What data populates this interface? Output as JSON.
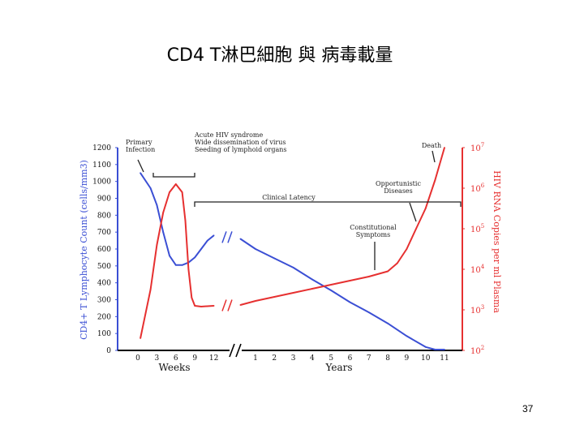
{
  "slide": {
    "title": "CD4 T淋巴細胞 與 病毒載量",
    "page_number": "37"
  },
  "colors": {
    "cd4": "#3b4fd4",
    "rna": "#e63030",
    "annotation": "#222222"
  },
  "chart_data": {
    "type": "line",
    "title": "",
    "ylabel_left": "CD4+ T Lymphocyte Count (cells/mm3)",
    "ylabel_right": "HIV RNA Copies per ml Plasma",
    "xlabel_weeks": "Weeks",
    "xlabel_years": "Years",
    "ylim_left": [
      0,
      1200
    ],
    "ylim_right_log10": [
      2,
      7
    ],
    "left_ticks": [
      "0",
      "100",
      "200",
      "300",
      "400",
      "500",
      "600",
      "700",
      "800",
      "900",
      "1000",
      "1100",
      "1200"
    ],
    "right_ticks": [
      {
        "base": "10",
        "exp": "2",
        "log": 2
      },
      {
        "base": "10",
        "exp": "3",
        "log": 3
      },
      {
        "base": "10",
        "exp": "4",
        "log": 4
      },
      {
        "base": "10",
        "exp": "5",
        "log": 5
      },
      {
        "base": "10",
        "exp": "6",
        "log": 6
      },
      {
        "base": "10",
        "exp": "7",
        "log": 7
      }
    ],
    "x_ticks_weeks": [
      "0",
      "3",
      "6",
      "9",
      "12"
    ],
    "x_ticks_years": [
      "1",
      "2",
      "3",
      "4",
      "5",
      "6",
      "7",
      "8",
      "9",
      "10",
      "11"
    ],
    "series": [
      {
        "key": "cd4",
        "x": [
          "w0.4",
          "w2",
          "w3",
          "w4",
          "w5",
          "w6",
          "w7",
          "w8",
          "w9",
          "w10",
          "w11",
          "w12",
          "y0.2",
          "y1",
          "y2",
          "y3",
          "y4",
          "y5",
          "y6",
          "y7",
          "y8",
          "y9",
          "y10",
          "y10.5",
          "y11"
        ],
        "y": [
          1050,
          960,
          860,
          700,
          560,
          505,
          505,
          520,
          550,
          600,
          650,
          680,
          660,
          600,
          545,
          490,
          420,
          355,
          285,
          225,
          160,
          85,
          20,
          5,
          5
        ]
      },
      {
        "key": "rna",
        "x": [
          "w0.4",
          "w2",
          "w3",
          "w4",
          "w5",
          "w6",
          "w7",
          "w7.5",
          "w8",
          "w8.5",
          "w9",
          "w10",
          "w11",
          "w12",
          "y0.2",
          "y1",
          "y2",
          "y3",
          "y4",
          "y5",
          "y6",
          "y7",
          "y8",
          "y8.5",
          "y9",
          "y9.5",
          "y10",
          "y10.5",
          "y11"
        ],
        "log10": [
          2.3,
          3.5,
          4.6,
          5.4,
          5.9,
          6.1,
          5.9,
          5.2,
          4.0,
          3.3,
          3.1,
          3.08,
          3.09,
          3.1,
          3.12,
          3.22,
          3.32,
          3.42,
          3.52,
          3.62,
          3.72,
          3.82,
          3.95,
          4.15,
          4.5,
          5.0,
          5.5,
          6.2,
          7.0
        ]
      }
    ],
    "annotations": [
      {
        "id": "primary",
        "lines": [
          "Primary",
          "Infection"
        ]
      },
      {
        "id": "acute",
        "lines": [
          "Acute HIV syndrome",
          "Wide dissemination of virus",
          "Seeding of lymphoid organs"
        ]
      },
      {
        "id": "latency",
        "lines": [
          "Clinical Latency"
        ]
      },
      {
        "id": "constitutional",
        "lines": [
          "Constitutional",
          "Symptoms"
        ]
      },
      {
        "id": "opportunistic",
        "lines": [
          "Opportunistic",
          "Diseases"
        ]
      },
      {
        "id": "death",
        "lines": [
          "Death"
        ]
      }
    ]
  }
}
